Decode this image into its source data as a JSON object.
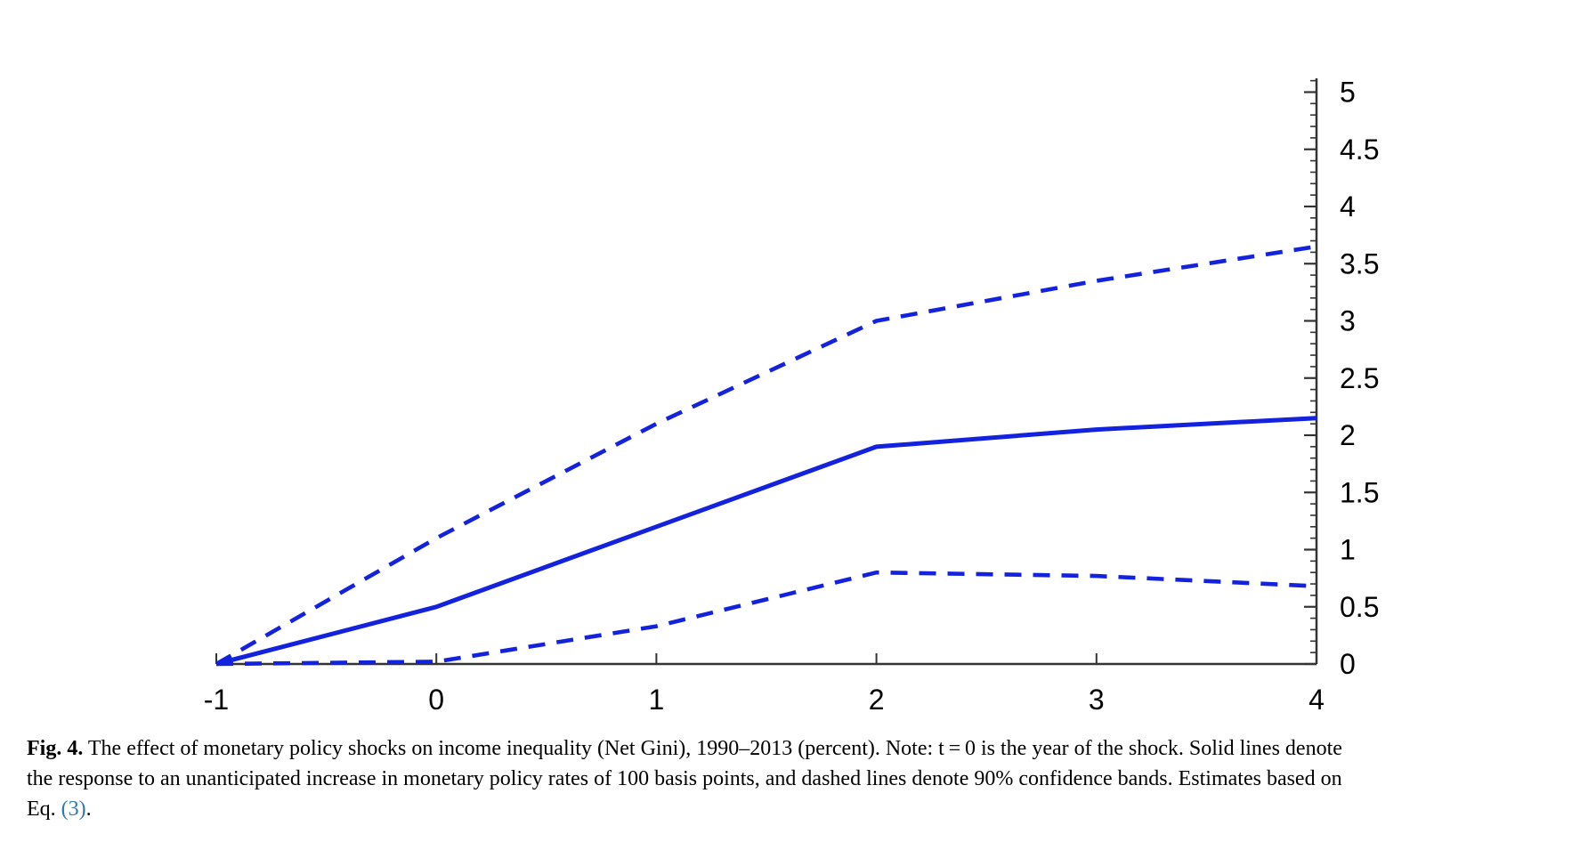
{
  "chart_data": {
    "type": "line",
    "x": [
      -1,
      0,
      1,
      2,
      3,
      4
    ],
    "series": [
      {
        "name": "point_estimate",
        "style": "solid",
        "values": [
          0,
          0.5,
          1.2,
          1.9,
          2.05,
          2.15
        ]
      },
      {
        "name": "upper_90_confidence",
        "style": "dashed",
        "values": [
          0,
          1.1,
          2.1,
          3.0,
          3.35,
          3.65
        ]
      },
      {
        "name": "lower_90_confidence",
        "style": "dashed",
        "values": [
          0,
          0.02,
          0.33,
          0.8,
          0.77,
          0.68
        ]
      }
    ],
    "xlim": [
      -1,
      4
    ],
    "ylim": [
      0,
      5
    ],
    "x_tick_values": [
      -1,
      0,
      1,
      2,
      3,
      4
    ],
    "x_tick_labels": [
      "-1",
      "0",
      "1",
      "2",
      "3",
      "4"
    ],
    "y_tick_values": [
      0,
      0.5,
      1,
      1.5,
      2,
      2.5,
      3,
      3.5,
      4,
      4.5,
      5
    ],
    "y_tick_labels": [
      "0",
      "0.5",
      "1",
      "1.5",
      "2",
      "2.5",
      "3",
      "3.5",
      "4",
      "4.5",
      "5"
    ],
    "y_minor_step": 0.1,
    "y_axis_side": "right",
    "grid": false,
    "legend": "none",
    "line_color": "#1322df",
    "axis_color": "#333333"
  },
  "caption": {
    "fig_label": "Fig. 4.",
    "line1_rest": " The effect of monetary policy shocks on income inequality (Net Gini), 1990–2013 (percent). Note: t = 0 is the year of the shock. Solid lines denote",
    "line2": "the response to an unanticipated increase in monetary policy rates of 100 basis points, and dashed lines denote 90% confidence bands. Estimates based on",
    "line3_prefix": "Eq. ",
    "line3_link": "(3)",
    "line3_suffix": ".",
    "link_color": "#3178ad"
  }
}
